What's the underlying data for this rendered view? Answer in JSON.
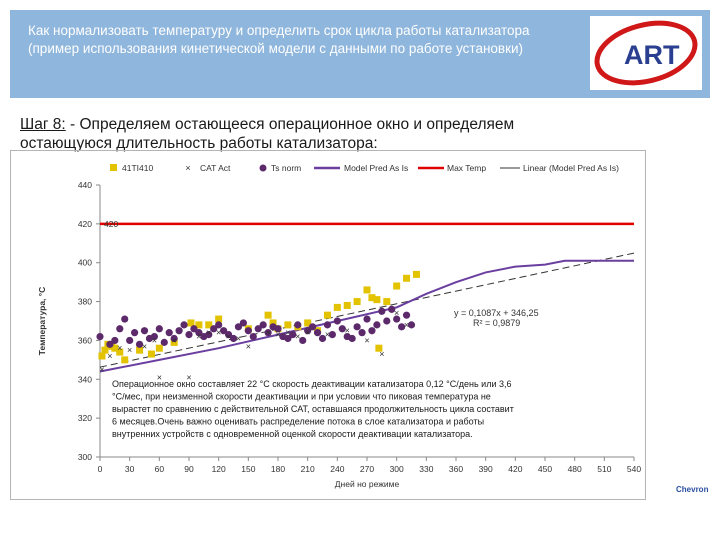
{
  "header": {
    "title_line1": "Как нормализовать температуру и определить срок цикла работы катализатора",
    "title_line2": "(пример использования кинетической модели с данными по работе установки)",
    "logo_text": "ART"
  },
  "step": {
    "label": "Шаг 8:",
    "dash": " - ",
    "text_line1": "Определяем остающееся операционное окно и определяем",
    "text_line2": "остающуюся длительность работы катализатора:"
  },
  "footer": {
    "brand": "Chevron"
  },
  "colors": {
    "header_bg": "#8fb6dc",
    "series_41TI410": "#e3c200",
    "series_cat": "#2e2e2e",
    "series_ts": "#5c2a6a",
    "model_line": "#6a3fa0",
    "max_temp": "#e00000",
    "accent_logo": "#d01818"
  },
  "chart_data": {
    "type": "scatter",
    "ylabel": "Температура, °C",
    "xlabel": "Дней но режиме",
    "xlim": [
      0,
      540
    ],
    "ylim": [
      300,
      440
    ],
    "x_ticks": [
      "0",
      "30",
      "60",
      "90",
      "120",
      "150",
      "180",
      "210",
      "240",
      "270",
      "300",
      "330",
      "360",
      "390",
      "420",
      "450",
      "480",
      "510",
      "540"
    ],
    "x_tick_values": [
      0,
      30,
      60,
      90,
      120,
      150,
      180,
      210,
      240,
      270,
      300,
      330,
      360,
      390,
      420,
      450,
      480,
      510,
      540
    ],
    "y_ticks": [
      "300",
      "320",
      "340",
      "360",
      "380",
      "400",
      "420",
      "440"
    ],
    "y_tick_values": [
      300,
      320,
      340,
      360,
      380,
      400,
      420,
      440
    ],
    "legend": [
      "41TI410",
      "CAT Act",
      "Ts norm",
      "Model Pred As Is",
      "Max Temp",
      "Linear (Model Pred As Is)"
    ],
    "max_temp_label": "420",
    "max_temp": 420,
    "model_pred": {
      "x": [
        0,
        60,
        120,
        180,
        240,
        300,
        330,
        360,
        390,
        420,
        450,
        470,
        540
      ],
      "y": [
        344,
        350,
        356,
        363,
        370,
        377,
        384,
        390,
        395,
        398,
        399,
        401,
        401
      ]
    },
    "linear_trend": {
      "slope": 0.1087,
      "intercept": 346.25,
      "x_range": [
        0,
        540
      ]
    },
    "equation": "y = 0,1087x + 346,25",
    "r_squared": "R² = 0,9879",
    "annotation": [
      "Операционное окно составляет 22 °С скорость деактивации катализатора 0,12 °С/день или 3,6",
      "°С/мес, при неизменной скорости деактивации и при условии что пиковая температура не",
      "вырастет по сравнению с действительной САТ, оставшаяся продолжительность цикла составит",
      "6 месяцев.Очень важно оценивать распределение потока в слое катализатора и работы",
      "внутренних устройств с одновременной оценкой скорости деактивации катализатора."
    ],
    "series": [
      {
        "name": "41TI410",
        "x": [
          2,
          5,
          8,
          12,
          15,
          20,
          25,
          40,
          52,
          60,
          75,
          92,
          100,
          110,
          120,
          150,
          170,
          175,
          180,
          190,
          200,
          210,
          220,
          230,
          240,
          250,
          260,
          270,
          275,
          280,
          282,
          290,
          300,
          310,
          320
        ],
        "y": [
          352,
          355,
          358,
          357,
          356,
          354,
          350,
          355,
          353,
          356,
          359,
          369,
          368,
          368,
          371,
          366,
          373,
          369,
          366,
          368,
          367,
          369,
          365,
          373,
          377,
          378,
          380,
          386,
          382,
          381,
          356,
          380,
          388,
          392,
          394
        ]
      },
      {
        "name": "CAT Act",
        "x": [
          2,
          10,
          20,
          30,
          45,
          55,
          60,
          75,
          90,
          100,
          110,
          120,
          130,
          140,
          150,
          170,
          180,
          190,
          200,
          210,
          230,
          250,
          270,
          285,
          300,
          310
        ],
        "y": [
          345,
          352,
          356,
          355,
          357,
          360,
          341,
          360,
          341,
          362,
          364,
          364,
          362,
          361,
          357,
          364,
          363,
          364,
          362,
          364,
          363,
          365,
          360,
          353,
          374,
          368
        ]
      },
      {
        "name": "Ts norm",
        "x": [
          0,
          10,
          15,
          20,
          25,
          30,
          35,
          40,
          45,
          50,
          55,
          60,
          65,
          70,
          75,
          80,
          85,
          90,
          95,
          100,
          105,
          110,
          115,
          120,
          125,
          130,
          135,
          140,
          145,
          150,
          155,
          160,
          165,
          170,
          175,
          180,
          185,
          190,
          195,
          200,
          205,
          210,
          215,
          220,
          225,
          230,
          235,
          240,
          245,
          250,
          255,
          260,
          265,
          270,
          275,
          280,
          285,
          290,
          295,
          300,
          305,
          310,
          315
        ],
        "y": [
          362,
          358,
          360,
          366,
          371,
          360,
          364,
          358,
          365,
          361,
          362,
          366,
          359,
          364,
          361,
          365,
          368,
          363,
          366,
          364,
          362,
          363,
          366,
          368,
          365,
          363,
          361,
          367,
          369,
          365,
          362,
          366,
          368,
          364,
          367,
          366,
          362,
          361,
          363,
          368,
          360,
          365,
          367,
          364,
          361,
          368,
          363,
          370,
          366,
          362,
          361,
          367,
          364,
          371,
          365,
          368,
          375,
          370,
          376,
          371,
          367,
          373,
          368
        ]
      }
    ]
  }
}
